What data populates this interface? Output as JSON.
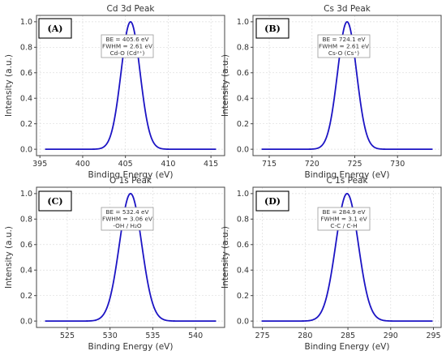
{
  "accent_color": "#1c14c4",
  "chart_data": [
    {
      "type": "line",
      "panel_label": "(A)",
      "title": "Cd 3d Peak",
      "xlabel": "Binding Energy (eV)",
      "ylabel": "Intensity (a.u.)",
      "xlim": [
        394.6,
        416.6
      ],
      "ylim": [
        -0.05,
        1.05
      ],
      "xticks": [
        "395",
        "400",
        "405",
        "410",
        "415"
      ],
      "yticks": [
        "0.0",
        "0.2",
        "0.4",
        "0.6",
        "0.8",
        "1.0"
      ],
      "grid": true,
      "series": [
        {
          "color": "#1c14c4",
          "curve": "gaussian",
          "x_range": [
            395.6,
            415.6
          ],
          "center": 405.6,
          "fwhm": 2.61
        }
      ],
      "annotation": [
        "BE = 405.6 eV",
        "FWHM = 2.61 eV",
        "Cd-O (Cd²⁺)"
      ]
    },
    {
      "type": "line",
      "panel_label": "(B)",
      "title": "Cs 3d Peak",
      "xlabel": "Binding Energy (eV)",
      "ylabel": "Intensity (a.u.)",
      "xlim": [
        713.1,
        735.1
      ],
      "ylim": [
        -0.05,
        1.05
      ],
      "xticks": [
        "715",
        "720",
        "725",
        "730"
      ],
      "yticks": [
        "0.0",
        "0.2",
        "0.4",
        "0.6",
        "0.8",
        "1.0"
      ],
      "grid": true,
      "series": [
        {
          "color": "#1c14c4",
          "curve": "gaussian",
          "x_range": [
            714.1,
            734.1
          ],
          "center": 724.1,
          "fwhm": 2.61
        }
      ],
      "annotation": [
        "BE = 724.1 eV",
        "FWHM = 2.61 eV",
        "Cs-O (Cs⁺)"
      ]
    },
    {
      "type": "line",
      "panel_label": "(C)",
      "title": "O 1s Peak",
      "xlabel": "Binding Energy (eV)",
      "ylabel": "Intensity (a.u.)",
      "xlim": [
        521.4,
        543.4
      ],
      "ylim": [
        -0.05,
        1.05
      ],
      "xticks": [
        "525",
        "530",
        "535",
        "540"
      ],
      "yticks": [
        "0.0",
        "0.2",
        "0.4",
        "0.6",
        "0.8",
        "1.0"
      ],
      "grid": true,
      "series": [
        {
          "color": "#1c14c4",
          "curve": "gaussian",
          "x_range": [
            522.4,
            542.4
          ],
          "center": 532.4,
          "fwhm": 3.06
        }
      ],
      "annotation": [
        "BE = 532.4 eV",
        "FWHM = 3.06 eV",
        "-OH / H₂O"
      ]
    },
    {
      "type": "line",
      "panel_label": "(D)",
      "title": "C 1s Peak",
      "xlabel": "Binding Energy (eV)",
      "ylabel": "Intensity (a.u.)",
      "xlim": [
        273.9,
        295.9
      ],
      "ylim": [
        -0.05,
        1.05
      ],
      "xticks": [
        "275",
        "280",
        "285",
        "290",
        "295"
      ],
      "yticks": [
        "0.0",
        "0.2",
        "0.4",
        "0.6",
        "0.8",
        "1.0"
      ],
      "grid": true,
      "series": [
        {
          "color": "#1c14c4",
          "curve": "gaussian",
          "x_range": [
            274.9,
            294.9
          ],
          "center": 284.9,
          "fwhm": 3.1
        }
      ],
      "annotation": [
        "BE = 284.9 eV",
        "FWHM = 3.1 eV",
        "C-C / C-H"
      ]
    }
  ]
}
